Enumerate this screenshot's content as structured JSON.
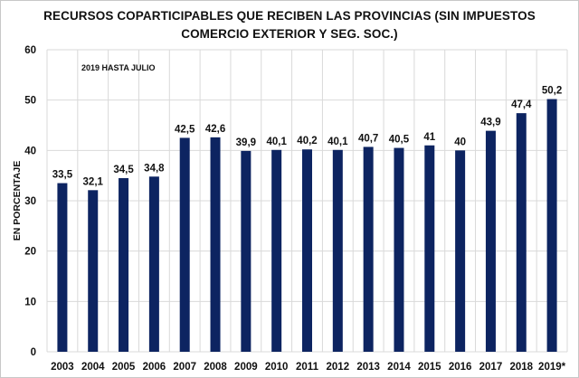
{
  "chart_data": {
    "type": "bar",
    "title_line1": "RECURSOS COPARTICIPABLES  QUE RECIBEN LAS PROVINCIAS (SIN IMPUESTOS",
    "title_line2": "COMERCIO EXTERIOR Y SEG. SOC.)",
    "annotation": "2019 HASTA JULIO",
    "xlabel": "",
    "ylabel": "EN PORCENTAJE",
    "ylim": [
      0,
      60
    ],
    "yticks": [
      0,
      10,
      20,
      30,
      40,
      50,
      60
    ],
    "grid": true,
    "bar_color": "#0d2461",
    "categories": [
      "2003",
      "2004",
      "2005",
      "2006",
      "2007",
      "2008",
      "2009",
      "2010",
      "2011",
      "2012",
      "2013",
      "2014",
      "2015",
      "2016",
      "2017",
      "2018",
      "2019*"
    ],
    "values": [
      33.5,
      32.1,
      34.5,
      34.8,
      42.5,
      42.6,
      39.9,
      40.1,
      40.2,
      40.1,
      40.7,
      40.5,
      41,
      40,
      43.9,
      47.4,
      50.2
    ],
    "data_labels": [
      "33,5",
      "32,1",
      "34,5",
      "34,8",
      "42,5",
      "42,6",
      "39,9",
      "40,1",
      "40,2",
      "40,1",
      "40,7",
      "40,5",
      "41",
      "40",
      "43,9",
      "47,4",
      "50,2"
    ]
  }
}
